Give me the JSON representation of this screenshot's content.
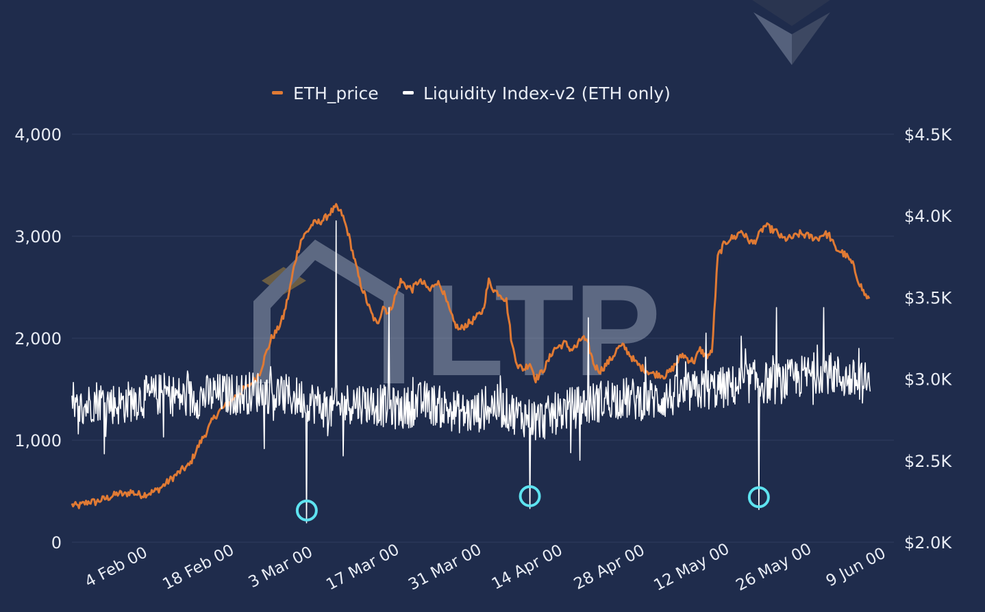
{
  "colors": {
    "background": "#1f2c4c",
    "eth_price": "#e07a34",
    "liquidity": "#ffffff",
    "marker": "#5ee3f0",
    "grid": "#2f3d5f",
    "text": "#e8ecf4"
  },
  "watermark": {
    "text": "LTP"
  },
  "chart_data": {
    "type": "line",
    "title": "",
    "legend_position": "top-center",
    "grid": true,
    "x_tick_labels": [
      "4 Feb 00",
      "18 Feb 00",
      "3 Mar 00",
      "17 Mar 00",
      "31 Mar 00",
      "14 Apr 00",
      "28 Apr 00",
      "12 May 00",
      "26 May 00",
      "9 Jun 00"
    ],
    "x_tick_days": [
      7,
      21,
      35,
      49,
      63,
      77,
      91,
      105,
      119,
      133
    ],
    "x_range_days": [
      0,
      140
    ],
    "y_left": {
      "label": "",
      "range": [
        0,
        4000
      ],
      "ticks": [
        0,
        1000,
        2000,
        3000,
        4000
      ],
      "tick_labels": [
        "0",
        "1,000",
        "2,000",
        "3,000",
        "4,000"
      ]
    },
    "y_right": {
      "label": "",
      "range": [
        2000,
        4500
      ],
      "ticks": [
        2000,
        2500,
        3000,
        3500,
        4000,
        4500
      ],
      "tick_labels": [
        "$2.0K",
        "$2.5K",
        "$3.0K",
        "$3.5K",
        "$4.0K",
        "$4.5K"
      ]
    },
    "series": [
      {
        "name": "ETH_price",
        "axis": "right",
        "points": [
          [
            0,
            2230
          ],
          [
            1,
            2220
          ],
          [
            2,
            2235
          ],
          [
            3,
            2250
          ],
          [
            4,
            2245
          ],
          [
            5,
            2260
          ],
          [
            6,
            2270
          ],
          [
            7,
            2285
          ],
          [
            8,
            2300
          ],
          [
            9,
            2290
          ],
          [
            10,
            2310
          ],
          [
            11,
            2295
          ],
          [
            12,
            2290
          ],
          [
            13,
            2300
          ],
          [
            14,
            2310
          ],
          [
            15,
            2330
          ],
          [
            16,
            2360
          ],
          [
            17,
            2390
          ],
          [
            18,
            2420
          ],
          [
            19,
            2450
          ],
          [
            20,
            2470
          ],
          [
            21,
            2550
          ],
          [
            22,
            2620
          ],
          [
            23,
            2680
          ],
          [
            24,
            2750
          ],
          [
            25,
            2800
          ],
          [
            26,
            2830
          ],
          [
            27,
            2860
          ],
          [
            28,
            2900
          ],
          [
            29,
            2930
          ],
          [
            30,
            2950
          ],
          [
            31,
            2990
          ],
          [
            32,
            3040
          ],
          [
            33,
            3150
          ],
          [
            34,
            3250
          ],
          [
            35,
            3300
          ],
          [
            36,
            3380
          ],
          [
            37,
            3530
          ],
          [
            38,
            3720
          ],
          [
            39,
            3850
          ],
          [
            40,
            3900
          ],
          [
            41,
            3950
          ],
          [
            42,
            3960
          ],
          [
            43,
            3980
          ],
          [
            44,
            4020
          ],
          [
            45,
            4050
          ],
          [
            46,
            4010
          ],
          [
            47,
            3900
          ],
          [
            48,
            3750
          ],
          [
            49,
            3600
          ],
          [
            50,
            3500
          ],
          [
            51,
            3400
          ],
          [
            52,
            3330
          ],
          [
            53,
            3450
          ],
          [
            54,
            3400
          ],
          [
            55,
            3500
          ],
          [
            56,
            3600
          ],
          [
            57,
            3570
          ],
          [
            58,
            3550
          ],
          [
            59,
            3600
          ],
          [
            60,
            3580
          ],
          [
            61,
            3540
          ],
          [
            62,
            3600
          ],
          [
            63,
            3560
          ],
          [
            64,
            3450
          ],
          [
            65,
            3350
          ],
          [
            66,
            3300
          ],
          [
            67,
            3330
          ],
          [
            68,
            3350
          ],
          [
            69,
            3380
          ],
          [
            70,
            3420
          ],
          [
            71,
            3600
          ],
          [
            72,
            3540
          ],
          [
            73,
            3520
          ],
          [
            74,
            3480
          ],
          [
            75,
            3200
          ],
          [
            76,
            3080
          ],
          [
            77,
            3060
          ],
          [
            78,
            3100
          ],
          [
            79,
            3000
          ],
          [
            80,
            3040
          ],
          [
            81,
            3100
          ],
          [
            82,
            3180
          ],
          [
            83,
            3200
          ],
          [
            84,
            3220
          ],
          [
            85,
            3180
          ],
          [
            86,
            3200
          ],
          [
            87,
            3260
          ],
          [
            88,
            3200
          ],
          [
            89,
            3080
          ],
          [
            90,
            3050
          ],
          [
            91,
            3090
          ],
          [
            92,
            3130
          ],
          [
            93,
            3190
          ],
          [
            94,
            3200
          ],
          [
            95,
            3150
          ],
          [
            96,
            3100
          ],
          [
            97,
            3070
          ],
          [
            98,
            3050
          ],
          [
            99,
            3030
          ],
          [
            100,
            3030
          ],
          [
            101,
            3020
          ],
          [
            102,
            3050
          ],
          [
            103,
            3100
          ],
          [
            104,
            3150
          ],
          [
            105,
            3120
          ],
          [
            106,
            3110
          ],
          [
            107,
            3180
          ],
          [
            108,
            3140
          ],
          [
            109,
            3160
          ],
          [
            110,
            3750
          ],
          [
            111,
            3820
          ],
          [
            112,
            3860
          ],
          [
            113,
            3870
          ],
          [
            114,
            3910
          ],
          [
            115,
            3860
          ],
          [
            116,
            3830
          ],
          [
            117,
            3880
          ],
          [
            118,
            3940
          ],
          [
            119,
            3920
          ],
          [
            120,
            3900
          ],
          [
            121,
            3860
          ],
          [
            122,
            3860
          ],
          [
            123,
            3870
          ],
          [
            124,
            3890
          ],
          [
            125,
            3880
          ],
          [
            126,
            3870
          ],
          [
            127,
            3860
          ],
          [
            128,
            3890
          ],
          [
            129,
            3880
          ],
          [
            130,
            3800
          ],
          [
            131,
            3780
          ],
          [
            132,
            3750
          ],
          [
            133,
            3700
          ],
          [
            134,
            3600
          ],
          [
            135,
            3520
          ],
          [
            136,
            3480
          ]
        ]
      },
      {
        "name": "Liquidity Index-v2 (ETH only)",
        "axis": "left",
        "points": [
          [
            0,
            1250
          ],
          [
            4,
            1400
          ],
          [
            8,
            1350
          ],
          [
            12,
            1420
          ],
          [
            16,
            1460
          ],
          [
            20,
            1400
          ],
          [
            24,
            1450
          ],
          [
            28,
            1450
          ],
          [
            32,
            1480
          ],
          [
            36,
            1440
          ],
          [
            40,
            1400
          ],
          [
            44,
            1300
          ],
          [
            48,
            1380
          ],
          [
            52,
            1350
          ],
          [
            56,
            1300
          ],
          [
            60,
            1380
          ],
          [
            64,
            1300
          ],
          [
            68,
            1250
          ],
          [
            72,
            1350
          ],
          [
            76,
            1250
          ],
          [
            80,
            1200
          ],
          [
            84,
            1300
          ],
          [
            88,
            1350
          ],
          [
            92,
            1420
          ],
          [
            96,
            1400
          ],
          [
            100,
            1400
          ],
          [
            104,
            1450
          ],
          [
            108,
            1500
          ],
          [
            112,
            1520
          ],
          [
            116,
            1580
          ],
          [
            120,
            1550
          ],
          [
            124,
            1620
          ],
          [
            128,
            1680
          ],
          [
            132,
            1600
          ],
          [
            136,
            1550
          ]
        ],
        "dips": [
          [
            40,
            190
          ],
          [
            78,
            330
          ],
          [
            117,
            320
          ]
        ],
        "spikes": [
          [
            45,
            3150
          ],
          [
            54,
            2300
          ],
          [
            88,
            2200
          ],
          [
            108,
            2050
          ],
          [
            120,
            2300
          ],
          [
            128,
            2300
          ]
        ]
      }
    ],
    "markers": [
      {
        "day": 40,
        "value": 190
      },
      {
        "day": 78,
        "value": 330
      },
      {
        "day": 117,
        "value": 320
      }
    ]
  }
}
